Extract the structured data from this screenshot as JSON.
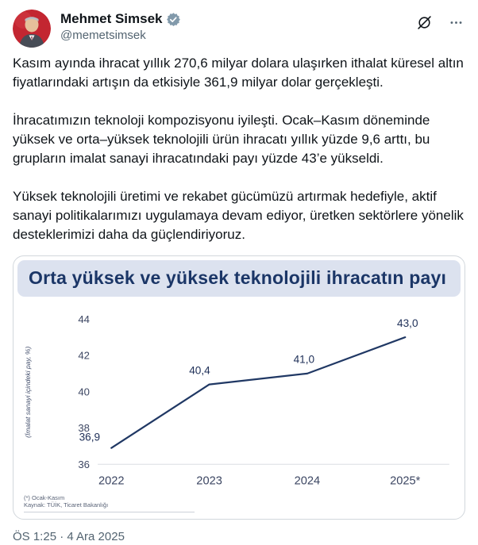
{
  "header": {
    "display_name": "Mehmet Simsek",
    "handle": "@memetsimsek",
    "more_label": "···"
  },
  "tweet": {
    "paragraphs": [
      "Kasım ayında ihracat yıllık 270,6 milyar dolara ulaşırken ithalat küresel altın fiyatlarındaki artışın da etkisiyle 361,9 milyar dolar gerçekleşti.",
      "İhracatımızın teknoloji kompozisyonu iyileşti. Ocak–Kasım döneminde yüksek ve orta–yüksek teknolojili ürün ihracatı yıllık yüzde 9,6 arttı, bu grupların imalat sanayi ihracatındaki payı yüzde 43’e yükseldi.",
      "Yüksek teknolojili üretimi ve rekabet gücümüzü artırmak hedefiyle, aktif sanayi politikalarımızı uygulamaya devam ediyor, üretken sektörlere yönelik desteklerimizi daha da güçlendiriyoruz."
    ],
    "timestamp": "ÖS 1:25 · 4 Ara 2025"
  },
  "chart_data": {
    "type": "line",
    "title": "Orta yüksek ve yüksek teknolojili ihracatın payı",
    "categories": [
      "2022",
      "2023",
      "2024",
      "2025*"
    ],
    "values": [
      36.9,
      40.4,
      41.0,
      43.0
    ],
    "data_labels": [
      "36,9",
      "40,4",
      "41,0",
      "43,0"
    ],
    "ylabel": "(İmalat sanayi içindeki pay, %)",
    "yticks": [
      44,
      42,
      40,
      38,
      36
    ],
    "ylim": [
      36,
      44
    ],
    "grid": false,
    "legend": false,
    "footnotes": [
      "(*) Ocak-Kasım",
      "Kaynak: TÜİK, Ticaret Bakanlığı"
    ],
    "line_color": "#203864",
    "banner_bg": "#dce2ef",
    "title_color": "#1b3667",
    "tick_color": "#3d4763",
    "label_color": "#21325a"
  },
  "colors": {
    "badge": "#829aab",
    "text": "#0f1419",
    "secondary": "#536471"
  }
}
